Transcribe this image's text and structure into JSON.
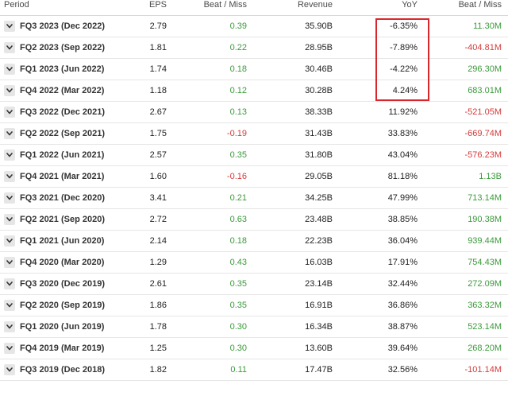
{
  "headers": {
    "period": "Period",
    "eps": "EPS",
    "eps_beat_miss": "Beat / Miss",
    "revenue": "Revenue",
    "yoy": "YoY",
    "revenue_beat_miss": "Beat / Miss"
  },
  "rows": [
    {
      "period": "FQ3 2023 (Dec 2022)",
      "eps": "2.79",
      "eps_bm": "0.39",
      "revenue": "35.90B",
      "yoy": "-6.35%",
      "rev_bm": "11.30M"
    },
    {
      "period": "FQ2 2023 (Sep 2022)",
      "eps": "1.81",
      "eps_bm": "0.22",
      "revenue": "28.95B",
      "yoy": "-7.89%",
      "rev_bm": "-404.81M"
    },
    {
      "period": "FQ1 2023 (Jun 2022)",
      "eps": "1.74",
      "eps_bm": "0.18",
      "revenue": "30.46B",
      "yoy": "-4.22%",
      "rev_bm": "296.30M"
    },
    {
      "period": "FQ4 2022 (Mar 2022)",
      "eps": "1.18",
      "eps_bm": "0.12",
      "revenue": "30.28B",
      "yoy": "4.24%",
      "rev_bm": "683.01M"
    },
    {
      "period": "FQ3 2022 (Dec 2021)",
      "eps": "2.67",
      "eps_bm": "0.13",
      "revenue": "38.33B",
      "yoy": "11.92%",
      "rev_bm": "-521.05M"
    },
    {
      "period": "FQ2 2022 (Sep 2021)",
      "eps": "1.75",
      "eps_bm": "-0.19",
      "revenue": "31.43B",
      "yoy": "33.83%",
      "rev_bm": "-669.74M"
    },
    {
      "period": "FQ1 2022 (Jun 2021)",
      "eps": "2.57",
      "eps_bm": "0.35",
      "revenue": "31.80B",
      "yoy": "43.04%",
      "rev_bm": "-576.23M"
    },
    {
      "period": "FQ4 2021 (Mar 2021)",
      "eps": "1.60",
      "eps_bm": "-0.16",
      "revenue": "29.05B",
      "yoy": "81.18%",
      "rev_bm": "1.13B"
    },
    {
      "period": "FQ3 2021 (Dec 2020)",
      "eps": "3.41",
      "eps_bm": "0.21",
      "revenue": "34.25B",
      "yoy": "47.99%",
      "rev_bm": "713.14M"
    },
    {
      "period": "FQ2 2021 (Sep 2020)",
      "eps": "2.72",
      "eps_bm": "0.63",
      "revenue": "23.48B",
      "yoy": "38.85%",
      "rev_bm": "190.38M"
    },
    {
      "period": "FQ1 2021 (Jun 2020)",
      "eps": "2.14",
      "eps_bm": "0.18",
      "revenue": "22.23B",
      "yoy": "36.04%",
      "rev_bm": "939.44M"
    },
    {
      "period": "FQ4 2020 (Mar 2020)",
      "eps": "1.29",
      "eps_bm": "0.43",
      "revenue": "16.03B",
      "yoy": "17.91%",
      "rev_bm": "754.43M"
    },
    {
      "period": "FQ3 2020 (Dec 2019)",
      "eps": "2.61",
      "eps_bm": "0.35",
      "revenue": "23.14B",
      "yoy": "32.44%",
      "rev_bm": "272.09M"
    },
    {
      "period": "FQ2 2020 (Sep 2019)",
      "eps": "1.86",
      "eps_bm": "0.35",
      "revenue": "16.91B",
      "yoy": "36.86%",
      "rev_bm": "363.32M"
    },
    {
      "period": "FQ1 2020 (Jun 2019)",
      "eps": "1.78",
      "eps_bm": "0.30",
      "revenue": "16.34B",
      "yoy": "38.87%",
      "rev_bm": "523.14M"
    },
    {
      "period": "FQ4 2019 (Mar 2019)",
      "eps": "1.25",
      "eps_bm": "0.30",
      "revenue": "13.60B",
      "yoy": "39.64%",
      "rev_bm": "268.20M"
    },
    {
      "period": "FQ3 2019 (Dec 2018)",
      "eps": "1.82",
      "eps_bm": "0.11",
      "revenue": "17.47B",
      "yoy": "32.56%",
      "rev_bm": "-101.14M"
    }
  ],
  "colors": {
    "positive": "#3c9a3c",
    "negative": "#d63b3b",
    "highlight_box": "#d9262c",
    "expand_button_bg": "#e6e6e6"
  },
  "icons": {
    "row_expand": "chevron-down-icon"
  }
}
